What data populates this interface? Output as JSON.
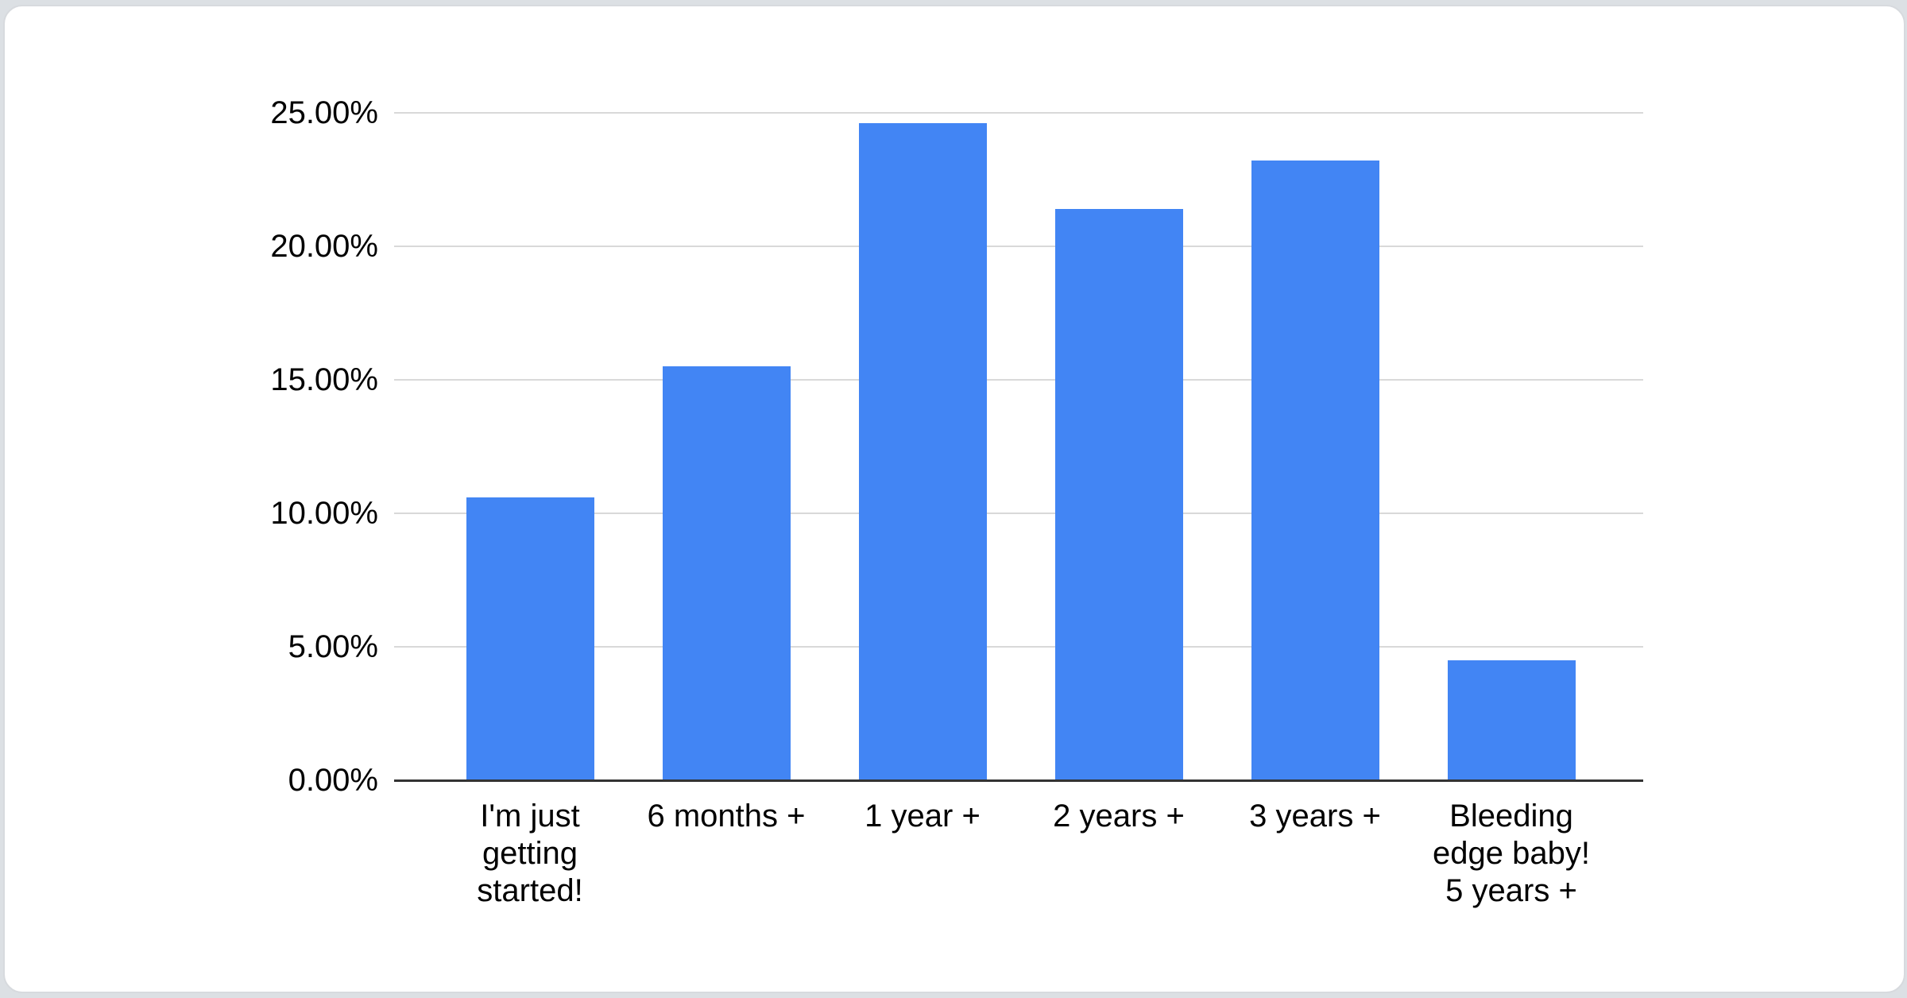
{
  "chart_data": {
    "type": "bar",
    "title": "",
    "xlabel": "",
    "ylabel": "",
    "categories": [
      "I'm just getting started!",
      "6 months +",
      "1 year +",
      "2 years +",
      "3 years +",
      "Bleeding edge baby! 5 years +"
    ],
    "values": [
      10.6,
      15.5,
      24.6,
      21.4,
      23.2,
      4.5
    ],
    "unit": "%",
    "ylim": [
      0,
      25
    ],
    "ytick_step": 5,
    "ytick_labels": [
      "0.00%",
      "5.00%",
      "10.00%",
      "15.00%",
      "20.00%",
      "25.00%"
    ],
    "xtick_lines": [
      [
        "I'm just",
        "getting",
        "started!"
      ],
      [
        "6 months +"
      ],
      [
        "1 year +"
      ],
      [
        "2 years +"
      ],
      [
        "3 years +"
      ],
      [
        "Bleeding",
        "edge baby!",
        "5 years +"
      ]
    ],
    "grid": true,
    "legend": "none",
    "bar_color": "#4285f4",
    "grid_color": "#d9d9d9",
    "axis_color": "#333333",
    "text_color": "#000000"
  }
}
